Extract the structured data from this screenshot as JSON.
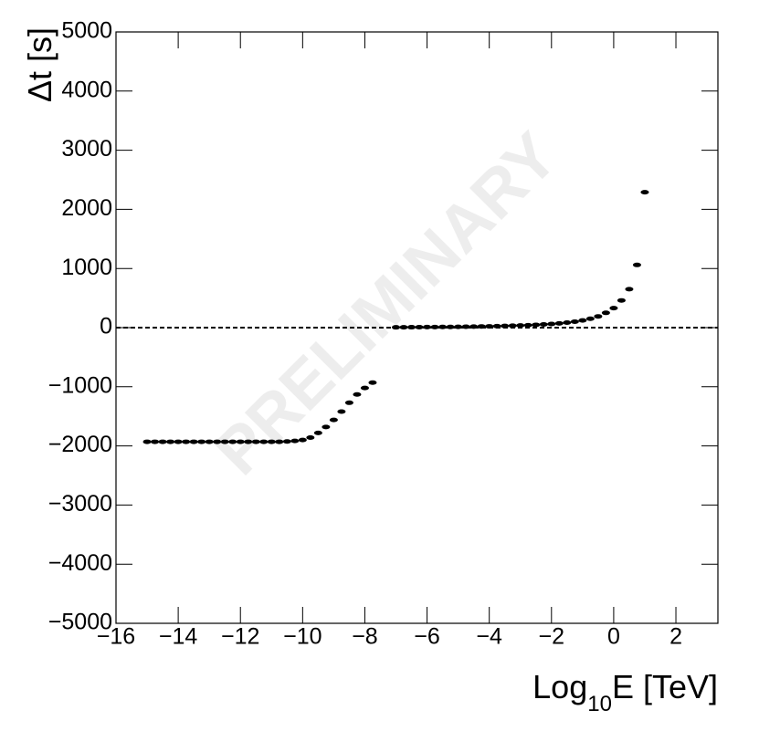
{
  "chart_data": {
    "type": "scatter",
    "x": [
      -15,
      -14.75,
      -14.5,
      -14.25,
      -14,
      -13.75,
      -13.5,
      -13.25,
      -13,
      -12.75,
      -12.5,
      -12.25,
      -12,
      -11.75,
      -11.5,
      -11.25,
      -11,
      -10.75,
      -10.5,
      -10.25,
      -10,
      -9.75,
      -9.5,
      -9.25,
      -9,
      -8.75,
      -8.5,
      -8.25,
      -8,
      -7.75,
      -7,
      -6.75,
      -6.5,
      -6.25,
      -6,
      -5.75,
      -5.5,
      -5.25,
      -5,
      -4.75,
      -4.5,
      -4.25,
      -4,
      -3.75,
      -3.5,
      -3.25,
      -3,
      -2.75,
      -2.5,
      -2.25,
      -2,
      -1.75,
      -1.5,
      -1.25,
      -1,
      -0.75,
      -0.5,
      -0.25,
      0,
      0.25,
      0.5,
      0.75,
      1
    ],
    "values": [
      -1930,
      -1930,
      -1930,
      -1930,
      -1930,
      -1930,
      -1930,
      -1930,
      -1930,
      -1930,
      -1930,
      -1930,
      -1930,
      -1930,
      -1930,
      -1930,
      -1930,
      -1930,
      -1925,
      -1915,
      -1900,
      -1860,
      -1780,
      -1680,
      -1560,
      -1420,
      -1270,
      -1130,
      -1020,
      -930,
      5,
      6,
      7,
      8,
      9,
      10,
      11,
      12,
      14,
      16,
      18,
      20,
      22,
      25,
      28,
      32,
      36,
      41,
      47,
      54,
      62,
      72,
      85,
      100,
      122,
      150,
      190,
      250,
      330,
      460,
      650,
      1060,
      2290
    ],
    "color": "#000000",
    "xlim": [
      -16,
      3.35
    ],
    "ylim": [
      -5000,
      5000
    ],
    "xticks": [
      {
        "value": -16,
        "label": "−16"
      },
      {
        "value": -14,
        "label": "−14"
      },
      {
        "value": -12,
        "label": "−12"
      },
      {
        "value": -10,
        "label": "−10"
      },
      {
        "value": -8,
        "label": "−8"
      },
      {
        "value": -6,
        "label": "−6"
      },
      {
        "value": -4,
        "label": "−4"
      },
      {
        "value": -2,
        "label": "−2"
      },
      0,
      2
    ],
    "yticks": [
      {
        "value": -5000,
        "label": "−5000"
      },
      {
        "value": -4000,
        "label": "−4000"
      },
      {
        "value": -3000,
        "label": "−3000"
      },
      {
        "value": -2000,
        "label": "−2000"
      },
      {
        "value": -1000,
        "label": "−1000"
      },
      0,
      1000,
      2000,
      3000,
      4000,
      5000
    ],
    "reference_line": 0,
    "xlabel": [
      "Log",
      "10",
      "E [TeV]"
    ],
    "ylabel": "Δt [s]",
    "watermark": "PRELIMINARY"
  }
}
